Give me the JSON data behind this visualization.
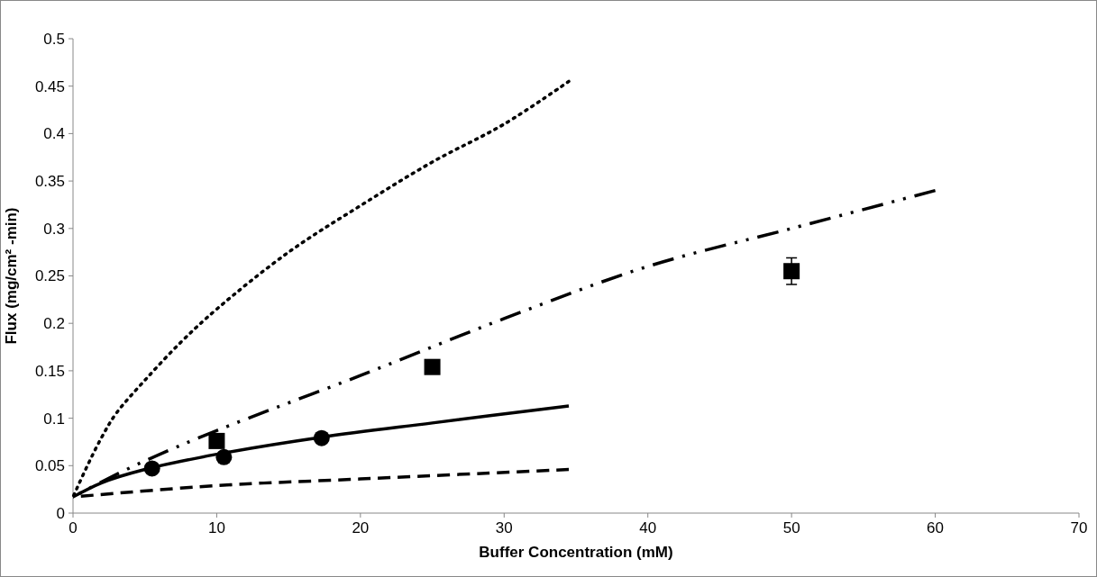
{
  "chart_data": {
    "type": "scatter",
    "xlabel": "Buffer Concentration (mM)",
    "ylabel": "Flux (mg/cm² -min)",
    "xlim": [
      0,
      70
    ],
    "xticks": [
      0,
      10,
      20,
      30,
      40,
      50,
      60,
      70
    ],
    "ylim": [
      0,
      0.5
    ],
    "yticks": [
      0,
      0.05,
      0.1,
      0.15,
      0.2,
      0.25,
      0.3,
      0.35,
      0.4,
      0.45,
      0.5
    ],
    "grid": false,
    "series": [
      {
        "type": "line",
        "line_style": "dotted",
        "color": "#000000",
        "x": [
          0,
          1,
          2,
          3,
          5,
          7.5,
          10,
          15,
          20,
          25,
          30,
          34.5
        ],
        "values": [
          0.017,
          0.05,
          0.08,
          0.105,
          0.14,
          0.18,
          0.215,
          0.275,
          0.324,
          0.37,
          0.41,
          0.455
        ]
      },
      {
        "type": "line",
        "line_style": "dashdot",
        "color": "#000000",
        "x": [
          0,
          2,
          5,
          10,
          20,
          30,
          40,
          50,
          60
        ],
        "values": [
          0.017,
          0.033,
          0.055,
          0.087,
          0.145,
          0.205,
          0.26,
          0.3,
          0.34
        ]
      },
      {
        "type": "line",
        "line_style": "solid",
        "color": "#000000",
        "x": [
          0,
          2,
          5,
          10,
          17.3,
          25,
          34.5
        ],
        "values": [
          0.017,
          0.032,
          0.046,
          0.062,
          0.08,
          0.095,
          0.113
        ]
      },
      {
        "type": "line",
        "line_style": "dashed",
        "color": "#000000",
        "x": [
          0,
          10,
          20,
          34.5
        ],
        "values": [
          0.017,
          0.029,
          0.036,
          0.046
        ]
      },
      {
        "marker": "circle",
        "color": "#000000",
        "x": [
          5.5,
          10.5,
          17.3
        ],
        "values": [
          0.047,
          0.059,
          0.079
        ]
      },
      {
        "marker": "square",
        "color": "#000000",
        "x": [
          10,
          25,
          50
        ],
        "values": [
          0.076,
          0.154,
          0.255
        ],
        "errors": [
          null,
          null,
          0.014
        ]
      }
    ]
  }
}
